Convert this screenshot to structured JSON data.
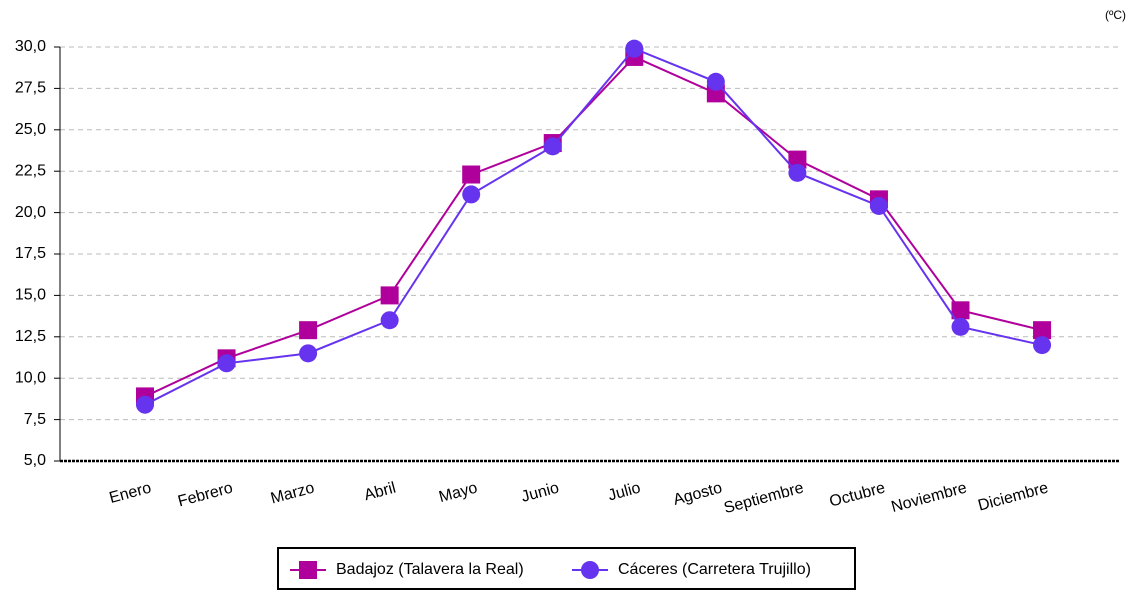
{
  "chart_data": {
    "type": "line",
    "annotation": "(ºC)",
    "categories": [
      "Enero",
      "Febrero",
      "Marzo",
      "Abril",
      "Mayo",
      "Junio",
      "Julio",
      "Agosto",
      "Septiembre",
      "Octubre",
      "Noviembre",
      "Diciembre"
    ],
    "series": [
      {
        "name": "Badajoz (Talavera la Real)",
        "color": "#b0009c",
        "marker": "square",
        "values": [
          8.9,
          11.2,
          12.9,
          15.0,
          22.3,
          24.2,
          29.4,
          27.2,
          23.2,
          20.8,
          14.1,
          12.9
        ]
      },
      {
        "name": "Cáceres (Carretera Trujillo)",
        "color": "#6633ee",
        "marker": "circle",
        "values": [
          8.4,
          10.9,
          11.5,
          13.5,
          21.1,
          24.0,
          29.9,
          27.9,
          22.4,
          20.4,
          13.1,
          12.0
        ]
      }
    ],
    "ylim": [
      5,
      30
    ],
    "yticks": [
      {
        "value": 5,
        "label": "5,0"
      },
      {
        "value": 7.5,
        "label": "7,5"
      },
      {
        "value": 10,
        "label": "10,0"
      },
      {
        "value": 12.5,
        "label": "12,5"
      },
      {
        "value": 15,
        "label": "15,0"
      },
      {
        "value": 17.5,
        "label": "17,5"
      },
      {
        "value": 20,
        "label": "20,0"
      },
      {
        "value": 22.5,
        "label": "22,5"
      },
      {
        "value": 25,
        "label": "25,0"
      },
      {
        "value": 27.5,
        "label": "27,5"
      },
      {
        "value": 30,
        "label": "30,0"
      }
    ],
    "grid": true,
    "legend": "bottom"
  }
}
